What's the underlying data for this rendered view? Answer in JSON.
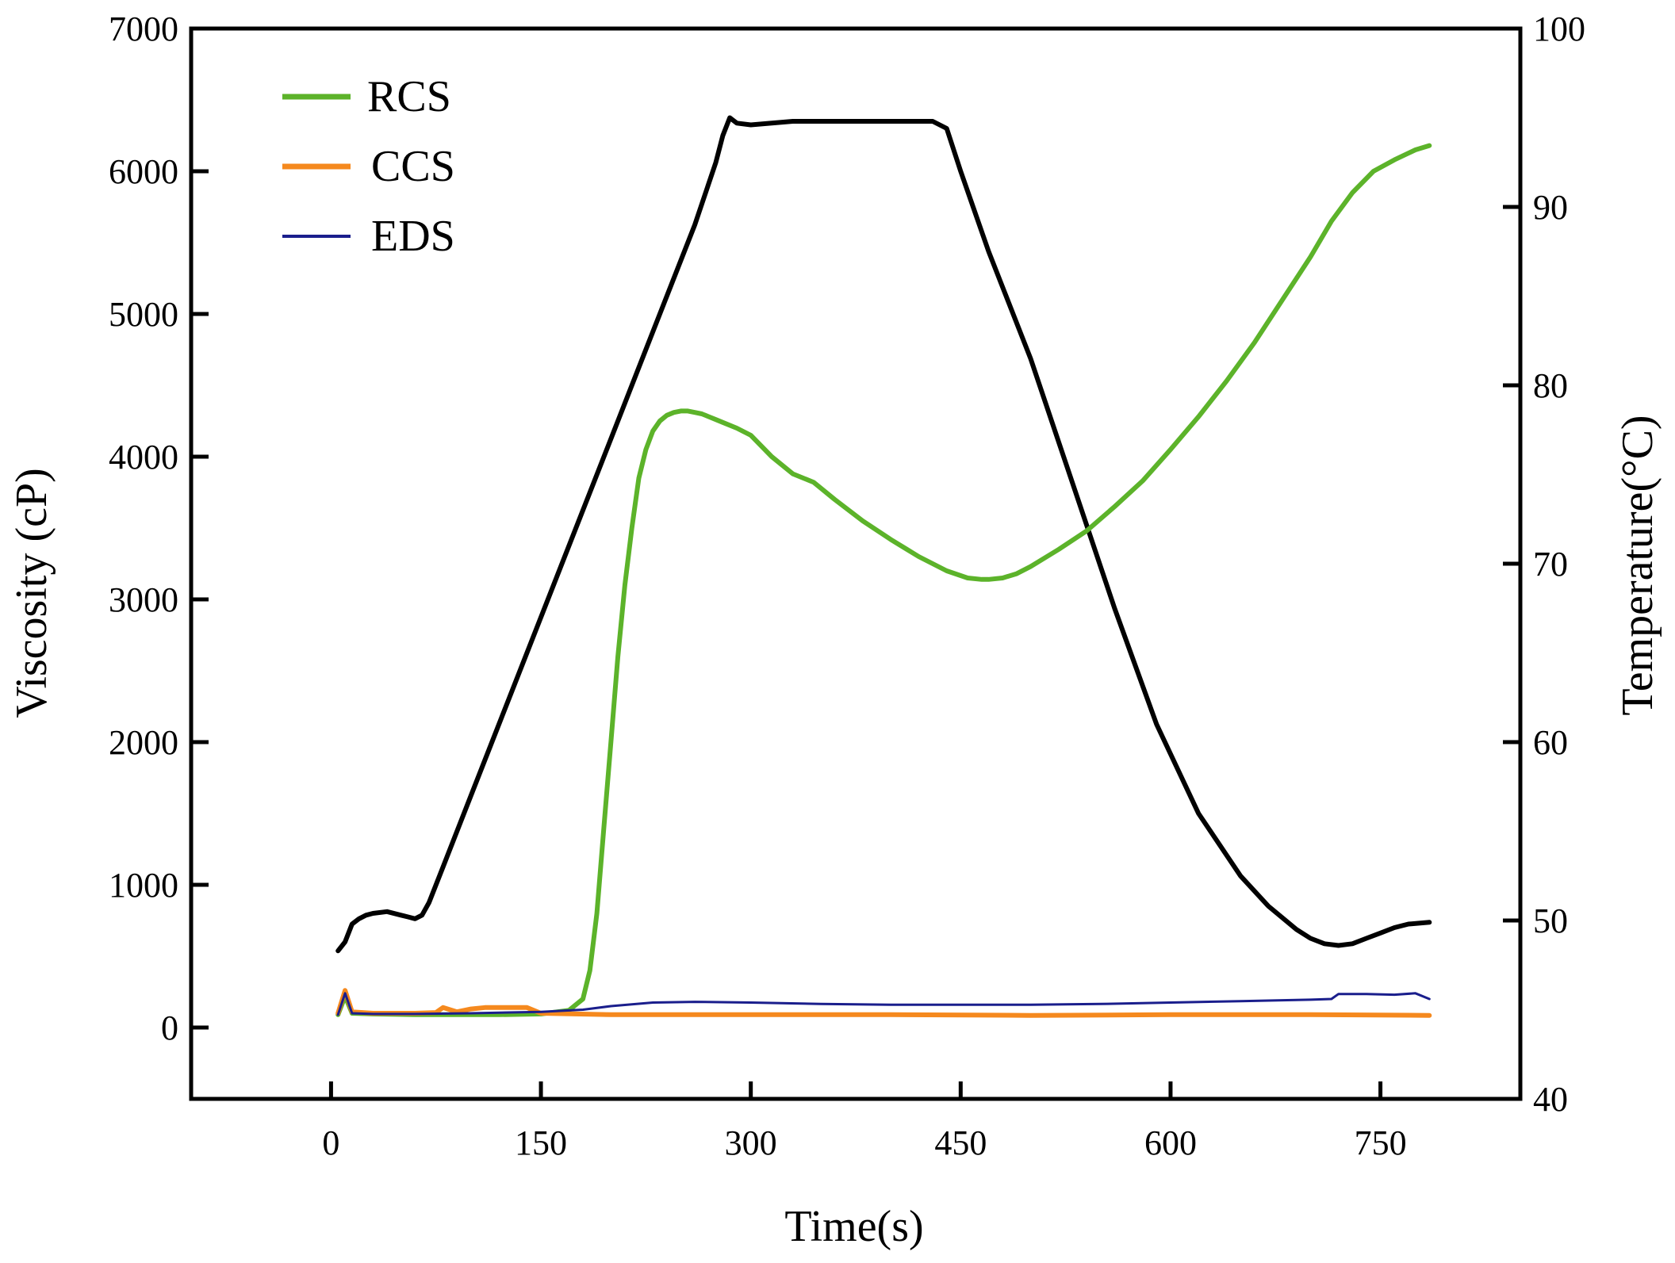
{
  "chart_data": {
    "type": "line",
    "title": "",
    "xlabel": "Time(s)",
    "ylabel": "Viscosity (cP)",
    "y2label": "Temperature(°C)",
    "xlim": [
      -100,
      850
    ],
    "ylim": [
      -500,
      7000
    ],
    "y2lim": [
      40,
      100
    ],
    "xticks": [
      0,
      150,
      300,
      450,
      600,
      750
    ],
    "yticks": [
      0,
      1000,
      2000,
      3000,
      4000,
      5000,
      6000,
      7000
    ],
    "y2ticks": [
      40,
      50,
      60,
      70,
      80,
      90,
      100
    ],
    "legend_position": "top-left",
    "grid": false,
    "series": [
      {
        "name": "RCS",
        "axis": "left",
        "color": "#5cb32a",
        "width": 6,
        "x": [
          5,
          10,
          15,
          30,
          60,
          90,
          120,
          150,
          170,
          180,
          185,
          190,
          195,
          200,
          205,
          210,
          215,
          220,
          225,
          230,
          235,
          240,
          245,
          250,
          255,
          260,
          265,
          270,
          275,
          280,
          290,
          300,
          315,
          330,
          345,
          360,
          380,
          400,
          420,
          440,
          455,
          465,
          470,
          480,
          490,
          500,
          520,
          540,
          560,
          580,
          600,
          620,
          640,
          660,
          680,
          700,
          715,
          730,
          745,
          760,
          775,
          785
        ],
        "y": [
          90,
          220,
          100,
          95,
          90,
          90,
          90,
          95,
          120,
          200,
          400,
          800,
          1400,
          2000,
          2600,
          3100,
          3500,
          3850,
          4050,
          4180,
          4250,
          4290,
          4310,
          4320,
          4320,
          4310,
          4300,
          4280,
          4260,
          4240,
          4200,
          4150,
          4000,
          3880,
          3820,
          3700,
          3550,
          3420,
          3300,
          3200,
          3150,
          3140,
          3140,
          3150,
          3180,
          3230,
          3350,
          3480,
          3650,
          3830,
          4050,
          4280,
          4530,
          4800,
          5100,
          5400,
          5650,
          5850,
          6000,
          6080,
          6150,
          6180
        ]
      },
      {
        "name": "CCS",
        "axis": "left",
        "color": "#f5891e",
        "width": 6,
        "x": [
          5,
          10,
          15,
          30,
          60,
          75,
          80,
          90,
          100,
          110,
          120,
          130,
          140,
          150,
          200,
          300,
          400,
          500,
          600,
          700,
          785
        ],
        "y": [
          100,
          260,
          110,
          100,
          100,
          105,
          140,
          110,
          130,
          140,
          140,
          140,
          140,
          100,
          90,
          90,
          90,
          85,
          90,
          90,
          85
        ]
      },
      {
        "name": "EDS",
        "axis": "left",
        "color": "#1a1e8c",
        "width": 3,
        "x": [
          5,
          10,
          15,
          30,
          60,
          100,
          150,
          180,
          200,
          230,
          260,
          300,
          350,
          400,
          450,
          500,
          550,
          600,
          650,
          700,
          715,
          720,
          740,
          760,
          775,
          785
        ],
        "y": [
          90,
          240,
          100,
          95,
          95,
          100,
          110,
          125,
          150,
          175,
          180,
          175,
          165,
          160,
          160,
          160,
          165,
          175,
          185,
          195,
          200,
          235,
          235,
          230,
          240,
          200
        ]
      },
      {
        "name": "Temperature",
        "axis": "right",
        "color": "#000000",
        "width": 6,
        "x": [
          5,
          10,
          15,
          20,
          25,
          30,
          40,
          50,
          55,
          60,
          65,
          70,
          80,
          100,
          120,
          140,
          160,
          180,
          200,
          220,
          240,
          260,
          275,
          280,
          285,
          290,
          300,
          330,
          360,
          400,
          430,
          440,
          450,
          470,
          500,
          530,
          560,
          590,
          620,
          650,
          670,
          690,
          700,
          710,
          720,
          730,
          740,
          750,
          760,
          770,
          785
        ],
        "y": [
          48.3,
          48.8,
          49.8,
          50.1,
          50.3,
          50.4,
          50.5,
          50.3,
          50.2,
          50.1,
          50.3,
          51.0,
          53.0,
          57.0,
          61.0,
          65.0,
          69.0,
          73.0,
          77.0,
          81.0,
          85.0,
          89.0,
          92.5,
          94.0,
          95.0,
          94.7,
          94.6,
          94.8,
          94.8,
          94.8,
          94.8,
          94.4,
          92.0,
          87.5,
          81.5,
          74.5,
          67.5,
          61.0,
          56.0,
          52.5,
          50.8,
          49.5,
          49.0,
          48.7,
          48.6,
          48.7,
          49.0,
          49.3,
          49.6,
          49.8,
          49.9
        ]
      }
    ]
  }
}
